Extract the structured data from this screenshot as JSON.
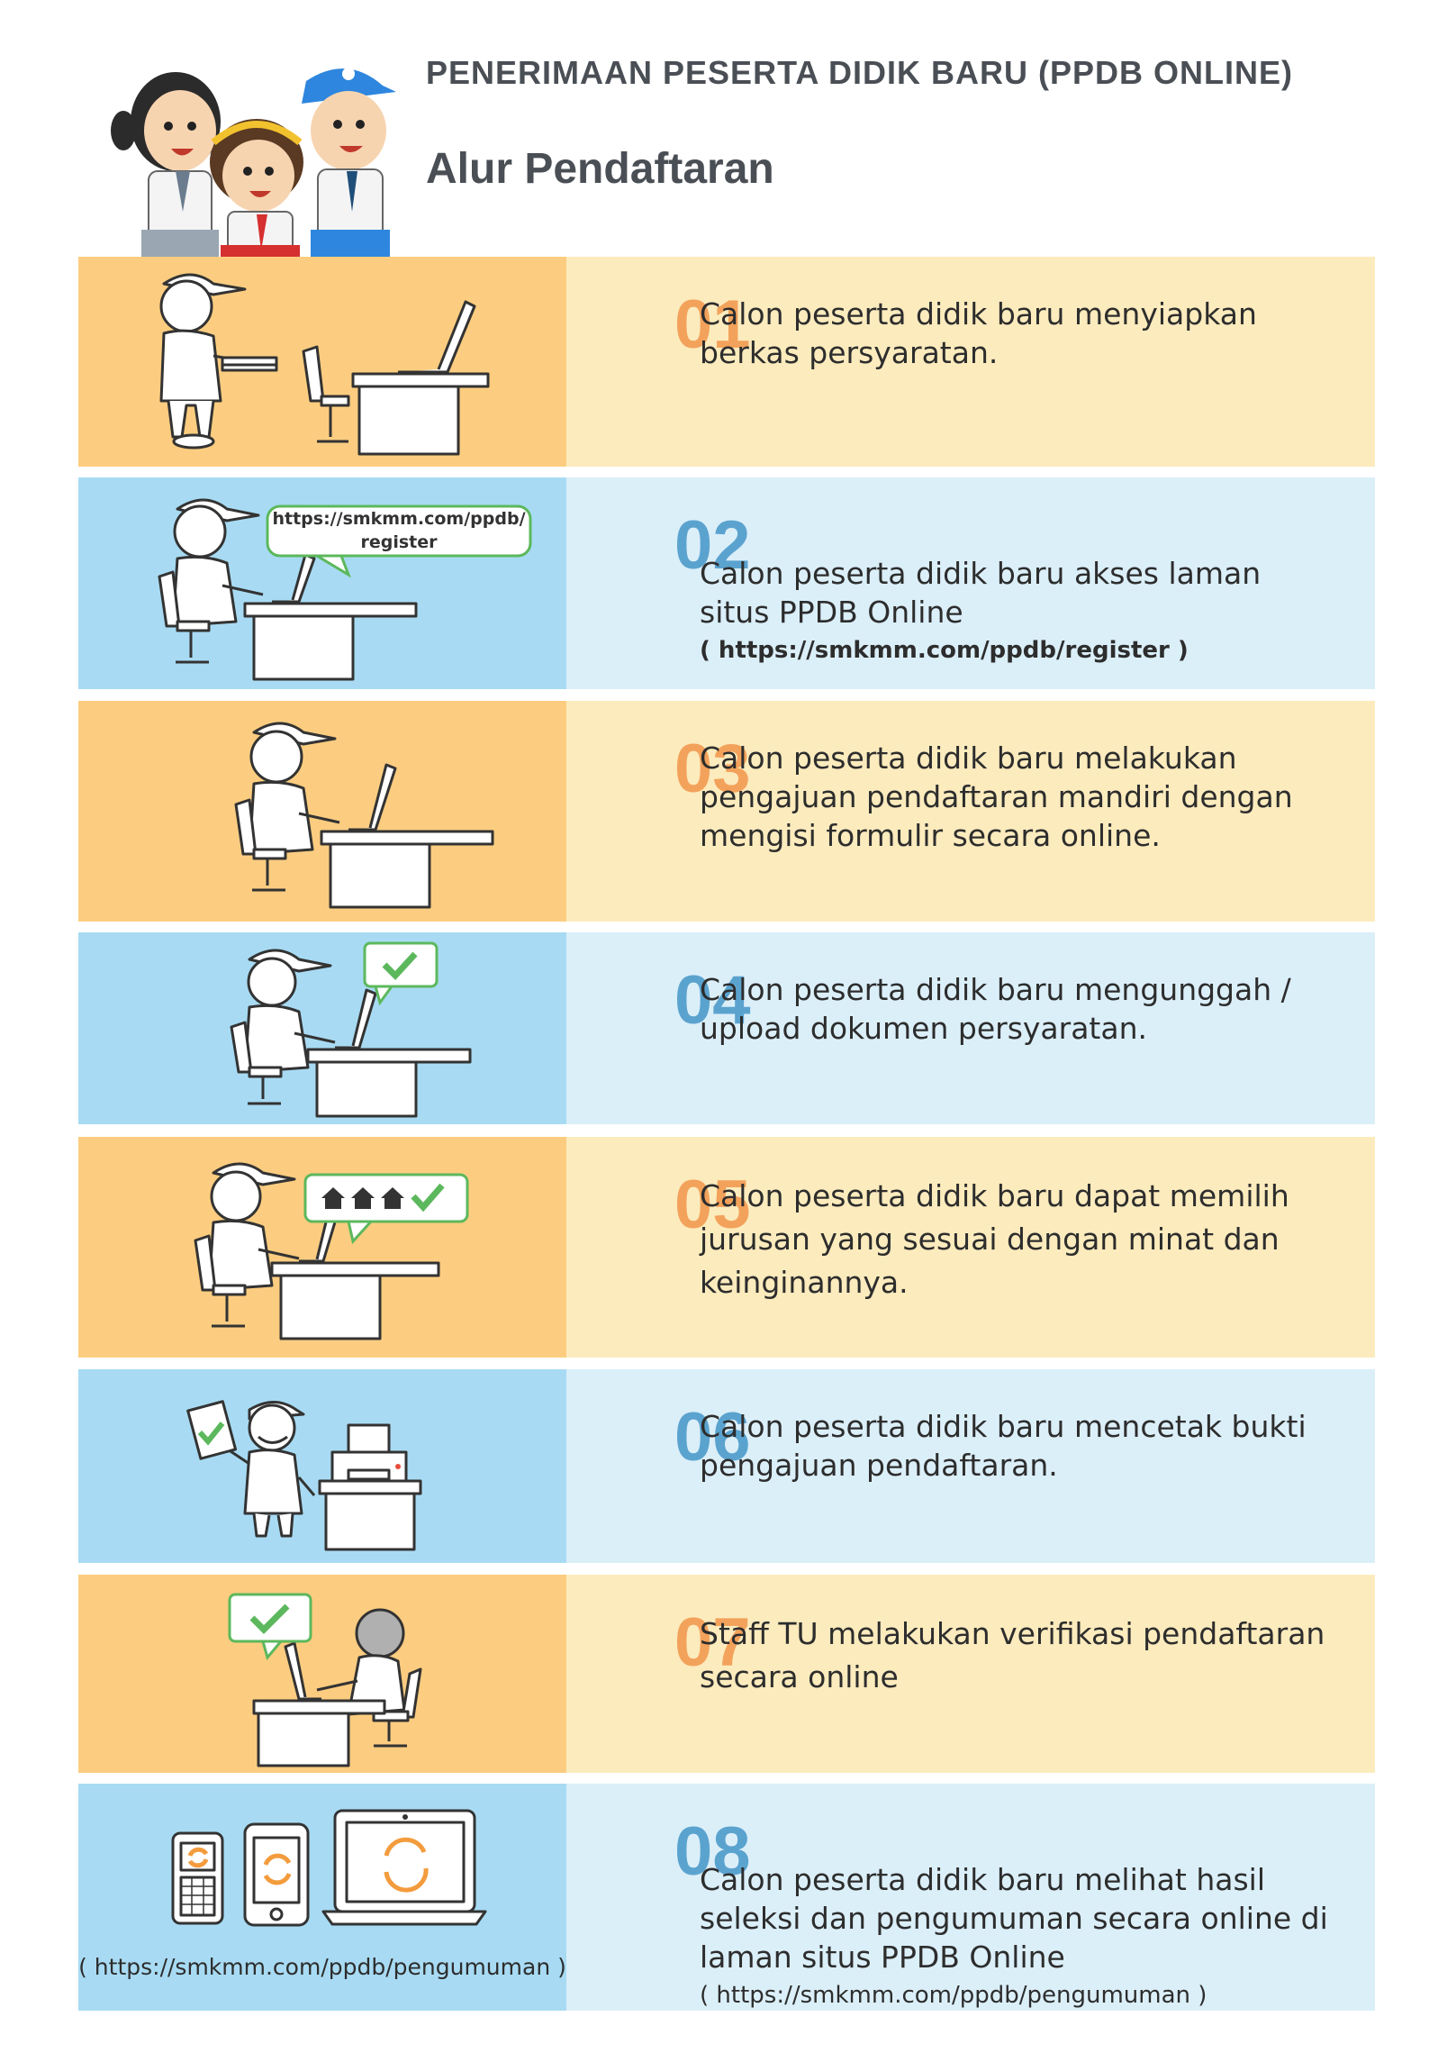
{
  "header": {
    "title": "PENERIMAAN PESERTA DIDIK BARU (PPDB ONLINE)",
    "subtitle": "Alur Pendaftaran"
  },
  "colors": {
    "warm_illustration": "#fccd80",
    "warm_text": "#fcebbd",
    "warm_number": "#f3a25b",
    "cool_illustration": "#a8dbf3",
    "cool_text": "#dbeff9",
    "cool_number": "#5ba3cf",
    "check_green": "#5cb85c"
  },
  "steps": [
    {
      "num": "01",
      "text": "Calon peserta didik baru menyiapkan\nberkas persyaratan."
    },
    {
      "num": "02",
      "text": "Calon peserta didik baru akses laman\nsitus PPDB Online",
      "link": "( https://smkmm.com/ppdb/register )",
      "bubble_line1": "https://smkmm.com/ppdb/",
      "bubble_line2": "register"
    },
    {
      "num": "03",
      "text": "Calon peserta didik baru melakukan\npengajuan pendaftaran mandiri dengan\nmengisi formulir secara online."
    },
    {
      "num": "04",
      "text": "Calon peserta didik baru mengunggah /\nupload dokumen persyaratan."
    },
    {
      "num": "05",
      "text": "Calon peserta didik baru dapat memilih\njurusan yang sesuai dengan minat dan\nkeinginannya."
    },
    {
      "num": "06",
      "text": "Calon peserta didik baru mencetak bukti\npengajuan pendaftaran."
    },
    {
      "num": "07",
      "text": "Staff TU melakukan verifikasi pendaftaran\nsecara online"
    },
    {
      "num": "08",
      "text": "Calon peserta didik baru melihat hasil\nseleksi dan pengumuman secara online di\nlaman situs PPDB Online",
      "link": "( https://smkmm.com/ppdb/pengumuman )",
      "caption": "( https://smkmm.com/ppdb/pengumuman )"
    }
  ]
}
